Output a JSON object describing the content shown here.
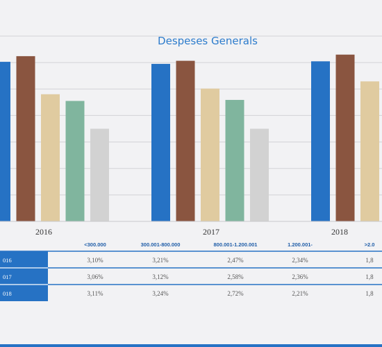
{
  "chart_data": {
    "type": "bar",
    "title": "Despeses Generals",
    "categories": [
      "2016",
      "2017",
      "2018"
    ],
    "series": [
      {
        "name": "<300.000",
        "color": "#2672c4",
        "values": [
          3.1,
          3.06,
          3.11
        ]
      },
      {
        "name": "300.001-800.000",
        "color": "#8a5540",
        "values": [
          3.21,
          3.12,
          3.24
        ]
      },
      {
        "name": "800.001-1.200.001",
        "color": "#e0cba0",
        "values": [
          2.47,
          2.58,
          2.72
        ]
      },
      {
        "name": "1.200.001-",
        "color": "#80b59e",
        "values": [
          2.34,
          2.36,
          2.21
        ]
      },
      {
        "name": ">2.0",
        "color": "#d2d2d2",
        "values": [
          1.8,
          1.8,
          1.8
        ]
      }
    ],
    "ylim": [
      0,
      3.6
    ],
    "grid": true,
    "table": {
      "columns": [
        "<300.000",
        "300.001-800.000",
        "800.001-1.200.001",
        "1.200.001-",
        ">2.0"
      ],
      "rows": [
        {
          "label": "016",
          "cells": [
            "3,10%",
            "3,21%",
            "2,47%",
            "2,34%",
            "1,8"
          ]
        },
        {
          "label": "017",
          "cells": [
            "3,06%",
            "3,12%",
            "2,58%",
            "2,36%",
            "1,8"
          ]
        },
        {
          "label": "018",
          "cells": [
            "3,11%",
            "3,24%",
            "2,72%",
            "2,21%",
            "1,8"
          ]
        }
      ]
    }
  },
  "colors": {
    "background": "#f2f2f4",
    "accent": "#2672c4",
    "title": "#2d7ccc",
    "gridline": "#d2d2d6",
    "header_text": "#1f5da8",
    "cell_text": "#555555"
  }
}
